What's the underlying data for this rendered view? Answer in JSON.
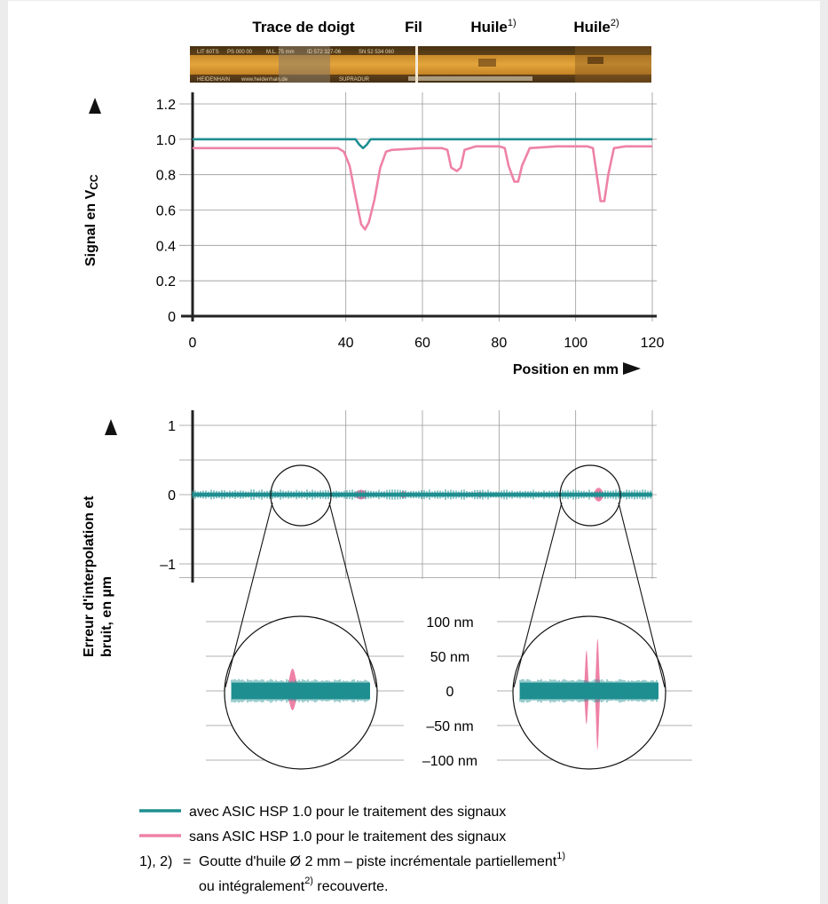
{
  "strip_labels": [
    "Trace de doigt",
    "Fil",
    "Huile",
    "Huile"
  ],
  "strip_label_sups": [
    "",
    "",
    "1)",
    "2)"
  ],
  "scale_strip_texts": [
    "LIT 60TS",
    "PS 000 00",
    "M.L. 75 mm",
    "ID 572 327-06",
    "SN 52 534 060",
    "HEIDENHAIN",
    "www.heidenhain.de",
    "SUPRAOUR"
  ],
  "colors": {
    "with_asic": "#1f8f91",
    "without_asic": "#ee82a6",
    "axis": "#222222",
    "grid": "#999999"
  },
  "chart_data": [
    {
      "type": "line",
      "title": "",
      "xlabel": "Position en mm",
      "ylabel": "Signal en V",
      "ylabel_sub": "CC",
      "xlim": [
        0,
        120
      ],
      "ylim": [
        0,
        1.2
      ],
      "xticks": [
        0,
        40,
        60,
        80,
        100,
        120
      ],
      "xtick_labels": [
        "0",
        "40",
        "60",
        "80",
        "100",
        "120"
      ],
      "yticks": [
        0,
        0.2,
        0.4,
        0.6,
        0.8,
        1.0,
        1.2
      ],
      "ytick_labels": [
        "0",
        "0.2",
        "0.4",
        "0.6",
        "0.8",
        "1.0",
        "1.2"
      ],
      "grid": true,
      "series": [
        {
          "name": "avec ASIC HSP 1.0 pour le traitement des signaux",
          "color": "#1f8f91",
          "x": [
            0,
            42.5,
            43.5,
            44.5,
            45.5,
            46.5,
            120
          ],
          "y": [
            1.0,
            1.0,
            0.97,
            0.95,
            0.97,
            1.0,
            1.0
          ]
        },
        {
          "name": "sans ASIC HSP 1.0 pour le traitement des signaux",
          "color": "#ee82a6",
          "x": [
            0,
            38,
            39.5,
            41,
            42.5,
            44,
            45,
            46,
            47.5,
            49,
            50.5,
            52,
            60,
            65,
            66.5,
            67.5,
            69,
            70,
            71,
            74,
            80,
            81.5,
            82.5,
            84,
            85,
            86,
            88,
            95,
            103,
            104.5,
            105.5,
            106.5,
            107.5,
            108.5,
            110,
            113,
            120
          ],
          "y": [
            0.95,
            0.95,
            0.93,
            0.85,
            0.68,
            0.52,
            0.49,
            0.53,
            0.66,
            0.84,
            0.93,
            0.94,
            0.95,
            0.95,
            0.94,
            0.84,
            0.82,
            0.84,
            0.94,
            0.96,
            0.96,
            0.95,
            0.85,
            0.76,
            0.76,
            0.85,
            0.95,
            0.96,
            0.96,
            0.95,
            0.8,
            0.65,
            0.65,
            0.8,
            0.95,
            0.96,
            0.96
          ]
        }
      ]
    },
    {
      "type": "line",
      "title": "",
      "xlabel": "",
      "ylabel": "Erreur d'interpolation et bruit, en µm",
      "xlim": [
        0,
        120
      ],
      "ylim": [
        -1.2,
        1.2
      ],
      "yticks": [
        1,
        0,
        -1
      ],
      "ytick_labels": [
        "1",
        "0",
        "–1"
      ],
      "grid": true,
      "noise_band_um": 0.03,
      "disturbances_um": [
        {
          "x": 44,
          "amp": 0.07,
          "width": 4
        },
        {
          "x": 55,
          "amp": 0.05,
          "width": 2
        },
        {
          "x": 75,
          "amp": 0.04,
          "width": 2
        },
        {
          "x": 106,
          "amp": 0.1,
          "width": 3
        }
      ]
    },
    {
      "type": "area",
      "title": "",
      "ylabel": "",
      "ylim": [
        -100,
        100
      ],
      "yticks": [
        100,
        50,
        0,
        -50,
        -100
      ],
      "ytick_labels": [
        "100 nm",
        "50 nm",
        "0",
        "–50 nm",
        "–100 nm"
      ],
      "noise_band_nm": 12,
      "left_zoom_bumps_nm": [
        {
          "pos": 0.44,
          "top": 32,
          "bottom": -28,
          "width": 0.12
        }
      ],
      "right_zoom_bumps_nm": [
        {
          "pos": 0.48,
          "top": 58,
          "bottom": -48,
          "width": 0.05
        },
        {
          "pos": 0.56,
          "top": 75,
          "bottom": -85,
          "width": 0.05
        }
      ]
    }
  ],
  "legend": [
    {
      "text": "avec ASIC HSP 1.0 pour le traitement des signaux",
      "color": "#1f8f91"
    },
    {
      "text": "sans ASIC HSP 1.0 pour le traitement des signaux",
      "color": "#ee82a6"
    }
  ],
  "footnote": {
    "prefix": "1), 2)",
    "eq": "=",
    "line1": "Goutte d'huile Ø 2 mm – piste incrémentale partiellement",
    "sup1": "1)",
    "line2a": "ou intégralement",
    "sup2": "2)",
    "line2b": " recouverte."
  }
}
